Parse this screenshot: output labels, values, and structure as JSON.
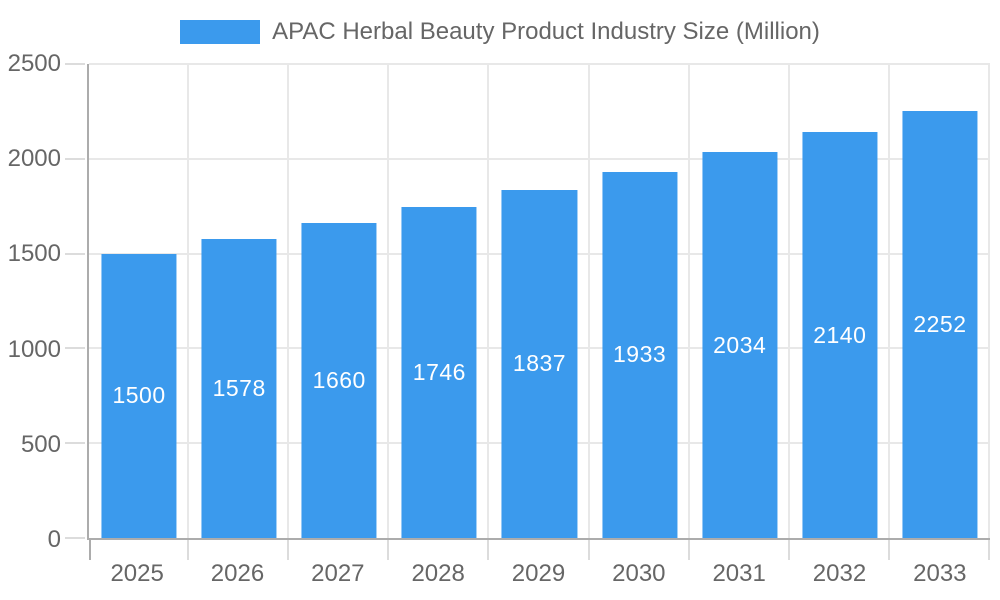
{
  "chart_data": {
    "type": "bar",
    "title": "",
    "legend": {
      "label": "APAC Herbal Beauty Product Industry Size (Million)",
      "position": "top"
    },
    "categories": [
      "2025",
      "2026",
      "2027",
      "2028",
      "2029",
      "2030",
      "2031",
      "2032",
      "2033"
    ],
    "series": [
      {
        "name": "APAC Herbal Beauty Product Industry Size (Million)",
        "values": [
          1500,
          1578,
          1660,
          1746,
          1837,
          1933,
          2034,
          2140,
          2252
        ]
      }
    ],
    "value_labels_inside_bars": [
      1500,
      1578,
      1660,
      1746,
      1837,
      1933,
      2034,
      2140,
      2252
    ],
    "xlabel": "",
    "ylabel": "",
    "ylim": [
      0,
      2500
    ],
    "yticks": [
      0,
      500,
      1000,
      1500,
      2000,
      2500
    ],
    "grid": "on",
    "colors": {
      "bar": "#3B9AED",
      "gridline": "#E8E8E8",
      "tick_mark": "#DCDCDC",
      "axis_border": "#ACACAC",
      "tick_text": "#666666",
      "value_label_text": "#FFFFFF",
      "background": "#FFFFFF"
    }
  }
}
